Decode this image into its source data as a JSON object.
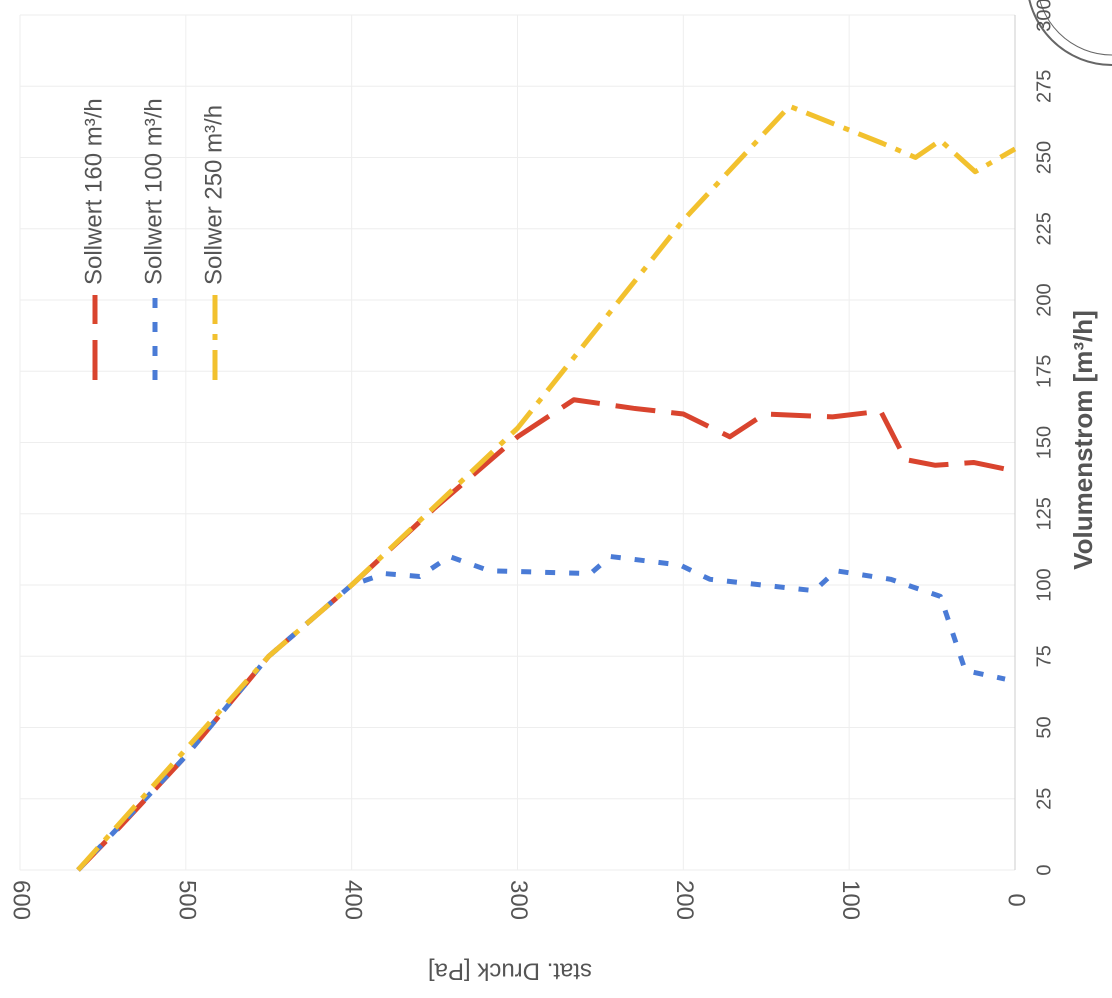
{
  "chart_data": {
    "type": "line",
    "x_label": "Volumenstrom [m³/h]",
    "y_label": "stat. Druck [Pa]",
    "xlim": [
      0,
      300
    ],
    "xticks": [
      0,
      25,
      50,
      75,
      100,
      125,
      150,
      175,
      200,
      225,
      250,
      275,
      300
    ],
    "ylim": [
      0,
      600
    ],
    "yticks": [
      0,
      100,
      200,
      300,
      400,
      500,
      600
    ],
    "grid": true,
    "legend": "upper-left",
    "series": [
      {
        "name": "Sollwert 160 m³/h",
        "color": "#d9442e",
        "dash": "long",
        "x": [
          0,
          15,
          40,
          75,
          100,
          127,
          152,
          165,
          162,
          160,
          152,
          160,
          159,
          161,
          144,
          142,
          143,
          140
        ],
        "values": [
          565,
          540,
          500,
          450,
          400,
          350,
          300,
          266,
          230,
          200,
          172,
          151,
          110,
          81,
          66,
          48,
          25,
          0
        ]
      },
      {
        "name": "Sollwert 100 m³/h",
        "color": "#4a7bd6",
        "dash": "short",
        "x": [
          0,
          40,
          75,
          100,
          104,
          103,
          110,
          105,
          104,
          110,
          107,
          102,
          98,
          105,
          102,
          96,
          70,
          67
        ],
        "values": [
          565,
          500,
          450,
          400,
          380,
          359,
          341,
          317,
          256,
          244,
          202,
          184,
          121,
          108,
          75,
          45,
          30,
          6
        ]
      },
      {
        "name": "Sollwer 250 m³/h",
        "color": "#f2c12e",
        "dash": "dashdot",
        "x": [
          0,
          75,
          100,
          155,
          228,
          268,
          255,
          250,
          256,
          245,
          253
        ],
        "values": [
          565,
          450,
          400,
          300,
          200,
          136,
          80,
          60,
          45,
          24,
          0
        ]
      }
    ]
  }
}
